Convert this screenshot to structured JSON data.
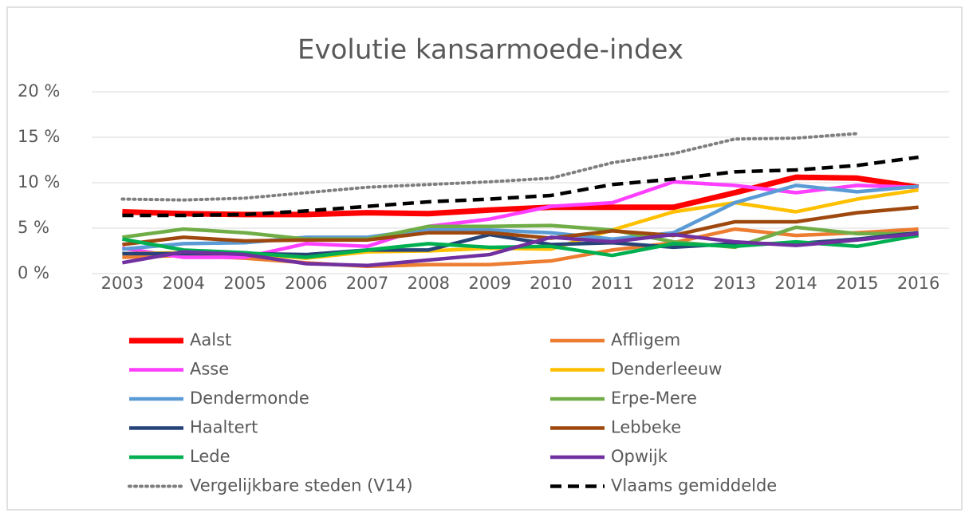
{
  "chart_data": {
    "type": "line",
    "title": "Evolutie kansarmoede-index",
    "categories": [
      "2003",
      "2004",
      "2005",
      "2006",
      "2007",
      "2008",
      "2009",
      "2010",
      "2011",
      "2012",
      "2013",
      "2014",
      "2015",
      "2016"
    ],
    "ylim": [
      0,
      20
    ],
    "yticks": [
      {
        "value": 0,
        "label": "0 %"
      },
      {
        "value": 5,
        "label": "5 %"
      },
      {
        "value": 10,
        "label": "10 %"
      },
      {
        "value": 15,
        "label": "15 %"
      },
      {
        "value": 20,
        "label": "20 %"
      }
    ],
    "grid": true,
    "legend": "bottom",
    "series": [
      {
        "name": "Aalst",
        "color": "#ff0000",
        "values": [
          6.8,
          6.6,
          6.5,
          6.5,
          6.7,
          6.6,
          7.0,
          7.3,
          7.3,
          7.3,
          8.9,
          10.6,
          10.5,
          9.5
        ]
      },
      {
        "name": "Affligem",
        "color": "#ed7d31",
        "values": [
          1.8,
          2.0,
          1.7,
          1.2,
          0.8,
          1.0,
          1.0,
          1.4,
          2.6,
          3.4,
          4.9,
          4.2,
          4.5,
          4.9
        ]
      },
      {
        "name": "Asse",
        "color": "#ff3fff",
        "values": [
          2.8,
          1.8,
          1.8,
          3.3,
          3.0,
          5.2,
          6.0,
          7.4,
          7.8,
          10.1,
          9.7,
          8.9,
          9.7,
          9.5
        ]
      },
      {
        "name": "Denderleeuw",
        "color": "#ffc000",
        "values": [
          2.2,
          2.3,
          2.2,
          1.7,
          2.4,
          2.5,
          2.8,
          2.7,
          4.8,
          6.8,
          7.8,
          6.8,
          8.2,
          9.2
        ]
      },
      {
        "name": "Dendermonde",
        "color": "#5b9bd5",
        "values": [
          2.7,
          3.3,
          3.4,
          4.0,
          4.0,
          4.9,
          4.8,
          4.5,
          3.8,
          4.5,
          7.8,
          9.7,
          9.0,
          9.6
        ]
      },
      {
        "name": "Erpe-Mere",
        "color": "#70ad47",
        "values": [
          4.0,
          4.9,
          4.5,
          3.8,
          3.8,
          5.2,
          5.2,
          5.3,
          4.8,
          3.5,
          2.9,
          5.1,
          4.4,
          4.4
        ]
      },
      {
        "name": "Haaltert",
        "color": "#264478",
        "values": [
          2.2,
          2.2,
          2.2,
          2.1,
          2.6,
          2.6,
          4.3,
          3.2,
          3.4,
          2.9,
          3.3,
          3.3,
          3.8,
          4.5
        ]
      },
      {
        "name": "Lebbeke",
        "color": "#9e480e",
        "values": [
          3.2,
          4.0,
          3.6,
          3.7,
          3.7,
          4.5,
          4.5,
          3.9,
          4.7,
          4.2,
          5.7,
          5.7,
          6.7,
          7.3
        ]
      },
      {
        "name": "Lede",
        "color": "#00b050",
        "values": [
          3.8,
          2.6,
          2.3,
          1.8,
          2.6,
          3.3,
          2.9,
          3.0,
          2.0,
          3.3,
          3.0,
          3.5,
          3.0,
          4.2
        ]
      },
      {
        "name": "Opwijk",
        "color": "#7030a0",
        "values": [
          1.2,
          2.4,
          2.1,
          1.1,
          0.9,
          1.5,
          2.1,
          4.0,
          3.5,
          4.3,
          3.5,
          3.1,
          3.7,
          4.4
        ]
      },
      {
        "name": "Vergelijkbare steden (V14)",
        "color": "#7f7f7f",
        "dash": "dotted",
        "values": [
          8.2,
          8.1,
          8.3,
          8.9,
          9.5,
          9.8,
          10.1,
          10.5,
          12.2,
          13.2,
          14.8,
          14.9,
          15.4,
          null
        ]
      },
      {
        "name": "Vlaams gemiddelde",
        "color": "#000000",
        "dash": "dashed",
        "values": [
          6.4,
          6.4,
          6.5,
          6.9,
          7.4,
          7.9,
          8.2,
          8.6,
          9.8,
          10.4,
          11.2,
          11.4,
          11.9,
          12.8
        ]
      }
    ]
  }
}
